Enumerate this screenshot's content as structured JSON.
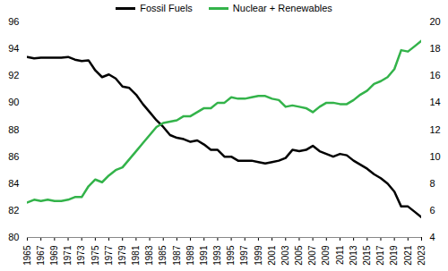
{
  "chart_data": {
    "type": "line",
    "x": [
      1965,
      1966,
      1967,
      1968,
      1969,
      1970,
      1971,
      1972,
      1973,
      1974,
      1975,
      1976,
      1977,
      1978,
      1979,
      1980,
      1981,
      1982,
      1983,
      1984,
      1985,
      1986,
      1987,
      1988,
      1989,
      1990,
      1991,
      1992,
      1993,
      1994,
      1995,
      1996,
      1997,
      1998,
      1999,
      2000,
      2001,
      2002,
      2003,
      2004,
      2005,
      2006,
      2007,
      2008,
      2009,
      2010,
      2011,
      2012,
      2013,
      2014,
      2015,
      2016,
      2017,
      2018,
      2019,
      2020,
      2021,
      2022,
      2023
    ],
    "series": [
      {
        "name": "Fossil Fuels",
        "color": "#000000",
        "values": [
          93.4,
          93.3,
          93.35,
          93.35,
          93.35,
          93.35,
          93.4,
          93.2,
          93.1,
          93.15,
          92.4,
          91.9,
          92.1,
          91.8,
          91.2,
          91.1,
          90.6,
          89.9,
          89.3,
          88.7,
          88.2,
          87.6,
          87.4,
          87.3,
          87.1,
          87.2,
          86.9,
          86.5,
          86.5,
          86.0,
          86.0,
          85.7,
          85.7,
          85.7,
          85.6,
          85.5,
          85.6,
          85.7,
          85.9,
          86.5,
          86.4,
          86.5,
          86.8,
          86.4,
          86.2,
          86.0,
          86.2,
          86.1,
          85.7,
          85.4,
          85.1,
          84.7,
          84.4,
          84.0,
          83.4,
          82.3,
          82.3,
          81.9,
          81.5
        ]
      },
      {
        "name": "Nuclear + Renewables",
        "color": "#33b34a",
        "axis": "y2",
        "values": [
          6.6,
          6.8,
          6.7,
          6.8,
          6.7,
          6.7,
          6.8,
          7.0,
          7.0,
          7.8,
          8.3,
          8.1,
          8.6,
          9.0,
          9.2,
          9.8,
          10.4,
          11.0,
          11.6,
          12.2,
          12.5,
          12.6,
          12.7,
          13.0,
          13.0,
          13.3,
          13.6,
          13.6,
          14.0,
          14.0,
          14.4,
          14.3,
          14.3,
          14.4,
          14.5,
          14.5,
          14.3,
          14.2,
          13.7,
          13.8,
          13.7,
          13.6,
          13.3,
          13.7,
          14.0,
          14.0,
          13.9,
          13.9,
          14.2,
          14.6,
          14.9,
          15.4,
          15.6,
          15.9,
          16.5,
          17.9,
          17.8,
          18.2,
          18.6
        ]
      }
    ],
    "xlim": [
      1965,
      2023
    ],
    "xticks": [
      1965,
      1967,
      1969,
      1971,
      1973,
      1975,
      1977,
      1979,
      1981,
      1983,
      1985,
      1987,
      1989,
      1991,
      1993,
      1995,
      1997,
      1999,
      2001,
      2003,
      2005,
      2007,
      2009,
      2011,
      2013,
      2015,
      2017,
      2019,
      2021,
      2023
    ],
    "ylim": [
      80,
      96
    ],
    "yticks": [
      80,
      82,
      84,
      86,
      88,
      90,
      92,
      94,
      96
    ],
    "y2lim": [
      4,
      20
    ],
    "y2ticks": [
      4,
      6,
      8,
      10,
      12,
      14,
      16,
      18,
      20
    ],
    "legend": "top",
    "grid": false
  }
}
